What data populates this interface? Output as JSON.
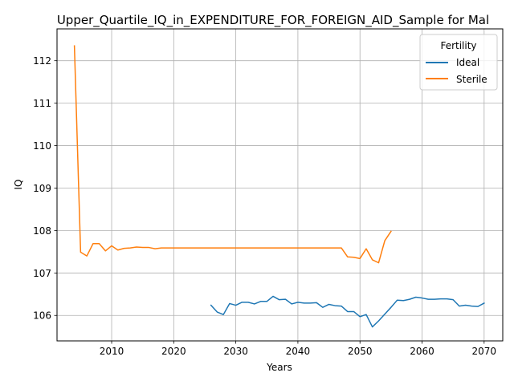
{
  "chart_data": {
    "type": "line",
    "title": "Upper_Quartile_IQ_in_EXPENDITURE_FOR_FOREIGN_AID_Sample for Mal",
    "xlabel": "Years",
    "ylabel": "IQ",
    "xlim": [
      2001.2,
      2073.0
    ],
    "ylim": [
      105.4,
      112.75
    ],
    "xticks": [
      2010,
      2020,
      2030,
      2040,
      2050,
      2060,
      2070
    ],
    "yticks": [
      106,
      107,
      108,
      109,
      110,
      111,
      112
    ],
    "grid": true,
    "legend": {
      "title": "Fertility",
      "placement": "top-right"
    },
    "series": [
      {
        "name": "Ideal",
        "color": "#1f77b4",
        "x": [
          2026,
          2027,
          2028,
          2029,
          2030,
          2031,
          2032,
          2033,
          2034,
          2035,
          2036,
          2037,
          2038,
          2039,
          2040,
          2041,
          2042,
          2043,
          2044,
          2045,
          2046,
          2047,
          2048,
          2049,
          2050,
          2051,
          2052,
          2053,
          2054,
          2055,
          2056,
          2057,
          2058,
          2059,
          2060,
          2061,
          2062,
          2063,
          2064,
          2065,
          2066,
          2067,
          2068,
          2069,
          2070
        ],
        "y": [
          106.24,
          106.08,
          106.02,
          106.28,
          106.24,
          106.31,
          106.31,
          106.27,
          106.33,
          106.33,
          106.45,
          106.37,
          106.38,
          106.27,
          106.31,
          106.29,
          106.29,
          106.3,
          106.19,
          106.26,
          106.23,
          106.22,
          106.09,
          106.09,
          105.97,
          106.02,
          105.73,
          105.87,
          106.03,
          106.19,
          106.36,
          106.35,
          106.38,
          106.43,
          106.41,
          106.38,
          106.38,
          106.39,
          106.39,
          106.37,
          106.22,
          106.24,
          106.22,
          106.21,
          106.29
        ]
      },
      {
        "name": "Sterile",
        "color": "#ff7f0e",
        "x": [
          2004,
          2005,
          2006,
          2007,
          2008,
          2009,
          2010,
          2011,
          2012,
          2013,
          2014,
          2015,
          2016,
          2017,
          2018,
          2019,
          2020,
          2021,
          2022,
          2023,
          2024,
          2025,
          2026,
          2027,
          2028,
          2029,
          2030,
          2031,
          2032,
          2033,
          2034,
          2035,
          2036,
          2037,
          2038,
          2039,
          2040,
          2041,
          2042,
          2043,
          2044,
          2045,
          2046,
          2047,
          2048,
          2049,
          2050,
          2051,
          2052,
          2053,
          2054,
          2055
        ],
        "y": [
          112.35,
          107.49,
          107.4,
          107.69,
          107.69,
          107.52,
          107.64,
          107.54,
          107.58,
          107.59,
          107.61,
          107.6,
          107.6,
          107.57,
          107.59,
          107.59,
          107.59,
          107.59,
          107.59,
          107.59,
          107.59,
          107.59,
          107.59,
          107.59,
          107.59,
          107.59,
          107.59,
          107.59,
          107.59,
          107.59,
          107.59,
          107.59,
          107.59,
          107.59,
          107.59,
          107.59,
          107.59,
          107.59,
          107.59,
          107.59,
          107.59,
          107.59,
          107.59,
          107.59,
          107.38,
          107.37,
          107.34,
          107.57,
          107.31,
          107.24,
          107.76,
          107.98
        ]
      }
    ]
  }
}
